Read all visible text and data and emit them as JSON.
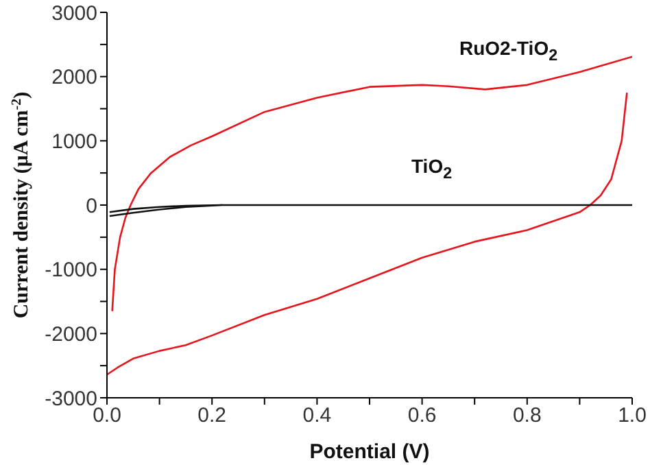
{
  "chart_data": {
    "type": "line",
    "xlabel": "Potential (V)",
    "ylabel": "Current density (μA cm$^{-2}$)",
    "xlim": [
      0,
      1
    ],
    "ylim": [
      -3000,
      3000
    ],
    "xticks": [
      {
        "value": 0,
        "label": "0.0"
      },
      {
        "value": 0.1,
        "label": null
      },
      {
        "value": 0.2,
        "label": "0.2"
      },
      {
        "value": 0.3,
        "label": null
      },
      {
        "value": 0.4,
        "label": "0.4"
      },
      {
        "value": 0.5,
        "label": null
      },
      {
        "value": 0.6,
        "label": "0.6"
      },
      {
        "value": 0.7,
        "label": null
      },
      {
        "value": 0.8,
        "label": "0.8"
      },
      {
        "value": 0.9,
        "label": null
      },
      {
        "value": 1,
        "label": "1.0"
      }
    ],
    "yticks": [
      -3000,
      {
        "value": -2500,
        "label": null
      },
      -2000,
      {
        "value": -1500,
        "label": null
      },
      -1000,
      {
        "value": -500,
        "label": null
      },
      0,
      {
        "value": 500,
        "label": null
      },
      1000,
      {
        "value": 1500,
        "label": null
      },
      2000,
      {
        "value": 2500,
        "label": null
      },
      3000
    ],
    "marker": "none",
    "line_style": "solid",
    "series": [
      {
        "name": "RuO2-TiO$_{2}$",
        "color": "#e8141c",
        "x": [
          0.01,
          0.015,
          0.025,
          0.035,
          0.045,
          0.06,
          0.083,
          0.12,
          0.16,
          0.2,
          0.3,
          0.4,
          0.5,
          0.6,
          0.65,
          0.72,
          0.8,
          0.9,
          1.0,
          null,
          0.99,
          0.98,
          0.96,
          0.94,
          0.92,
          0.9,
          0.8,
          0.7,
          0.6,
          0.5,
          0.4,
          0.3,
          0.2,
          0.15,
          0.1,
          0.05,
          0.02,
          0.0
        ],
        "values": [
          -1650,
          -1000,
          -500,
          -200,
          0,
          250,
          490,
          750,
          930,
          1070,
          1450,
          1670,
          1840,
          1870,
          1850,
          1800,
          1870,
          2070,
          2310,
          null,
          1750,
          1000,
          400,
          150,
          0,
          -110,
          -390,
          -570,
          -820,
          -1140,
          -1460,
          -1710,
          -2030,
          -2180,
          -2270,
          -2390,
          -2530,
          -2640
        ]
      },
      {
        "name": "TiO$_{2}$",
        "color": "#111111",
        "x": [
          1.0,
          0.22,
          0.15,
          0.1,
          0.05,
          0.005,
          null,
          0.005,
          0.05,
          0.1,
          0.15,
          0.22
        ],
        "values": [
          0,
          0,
          -10,
          -30,
          -60,
          -110,
          null,
          -170,
          -120,
          -70,
          -30,
          0
        ]
      }
    ]
  }
}
